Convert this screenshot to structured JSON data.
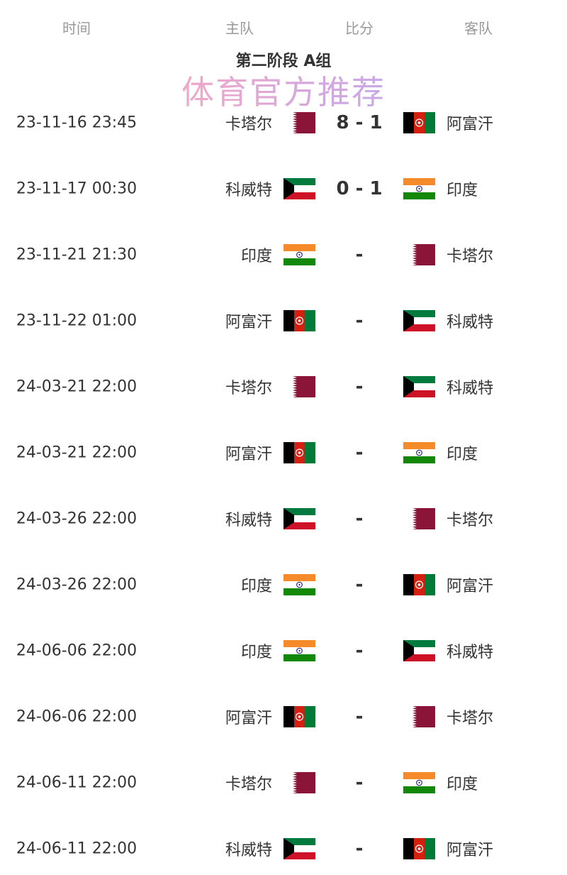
{
  "header": {
    "time": "时间",
    "home": "主队",
    "score": "比分",
    "away": "客队"
  },
  "group_title": "第二阶段 A组",
  "flags": {
    "卡塔尔": "qatar",
    "阿富汗": "afghanistan",
    "科威特": "kuwait",
    "印度": "india"
  },
  "matches": [
    {
      "time": "23-11-16 23:45",
      "home": "卡塔尔",
      "score": "8 - 1",
      "away": "阿富汗"
    },
    {
      "time": "23-11-17 00:30",
      "home": "科威特",
      "score": "0 - 1",
      "away": "印度"
    },
    {
      "time": "23-11-21 21:30",
      "home": "印度",
      "score": "-",
      "away": "卡塔尔"
    },
    {
      "time": "23-11-22 01:00",
      "home": "阿富汗",
      "score": "-",
      "away": "科威特"
    },
    {
      "time": "24-03-21 22:00",
      "home": "卡塔尔",
      "score": "-",
      "away": "科威特"
    },
    {
      "time": "24-03-21 22:00",
      "home": "阿富汗",
      "score": "-",
      "away": "印度"
    },
    {
      "time": "24-03-26 22:00",
      "home": "科威特",
      "score": "-",
      "away": "卡塔尔"
    },
    {
      "time": "24-03-26 22:00",
      "home": "印度",
      "score": "-",
      "away": "阿富汗"
    },
    {
      "time": "24-06-06 22:00",
      "home": "印度",
      "score": "-",
      "away": "科威特"
    },
    {
      "time": "24-06-06 22:00",
      "home": "阿富汗",
      "score": "-",
      "away": "卡塔尔"
    },
    {
      "time": "24-06-11 22:00",
      "home": "卡塔尔",
      "score": "-",
      "away": "印度"
    },
    {
      "time": "24-06-11 22:00",
      "home": "科威特",
      "score": "-",
      "away": "阿富汗"
    }
  ],
  "watermark": "体育官方推荐"
}
